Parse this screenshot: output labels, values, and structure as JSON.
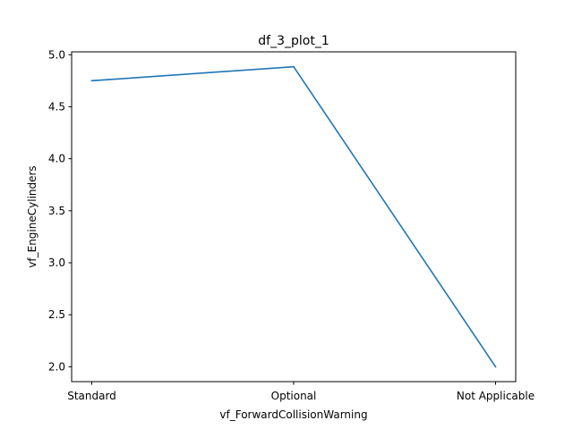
{
  "chart_data": {
    "type": "line",
    "title": "df_3_plot_1",
    "xlabel": "vf_ForwardCollisionWarning",
    "ylabel": "vf_EngineCylinders",
    "categories": [
      "Standard",
      "Optional",
      "Not Applicable"
    ],
    "series": [
      {
        "values": [
          4.75,
          4.885,
          2.0
        ],
        "color": "#1f77b4"
      }
    ],
    "ylim": [
      1.857,
      5.028
    ],
    "yticks": [
      2.0,
      2.5,
      3.0,
      3.5,
      4.0,
      4.5,
      5.0
    ],
    "ytick_labels": [
      "2.0",
      "2.5",
      "3.0",
      "3.5",
      "4.0",
      "4.5",
      "5.0"
    ],
    "grid": false,
    "legend": "none"
  }
}
